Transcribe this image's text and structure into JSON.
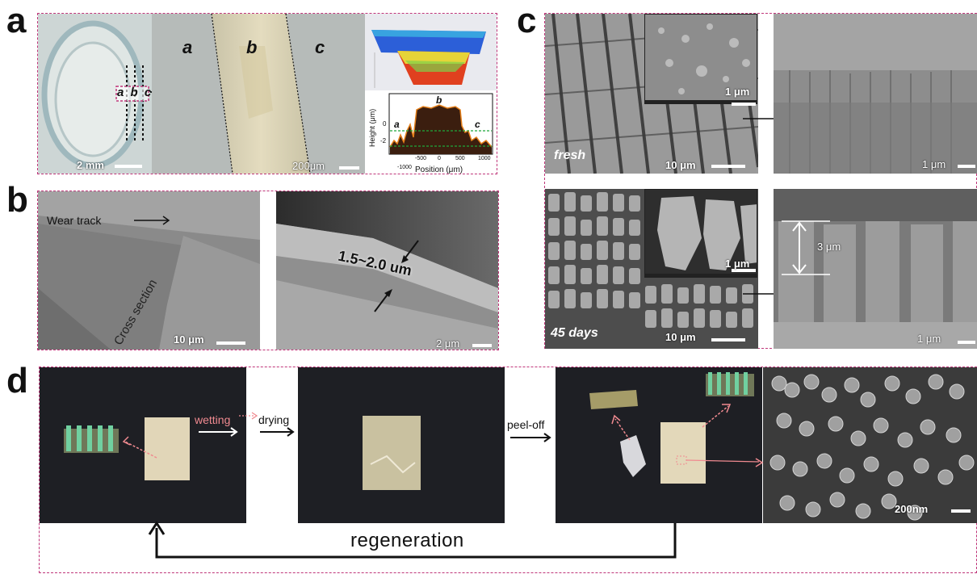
{
  "panel_labels": {
    "a": "a",
    "b": "b",
    "c": "c",
    "d": "d"
  },
  "panel_a": {
    "scale_photo": "2 mm",
    "markers": "a b c",
    "zones": [
      "a",
      "b",
      "c"
    ],
    "scale_micro": "200μm",
    "profile": {
      "ylabel": "Height (μm)",
      "xlabel": "Position (μm)",
      "xticks": [
        "-1000",
        "-500",
        "0",
        "500",
        "1000"
      ],
      "yticks": [
        "0",
        "-2"
      ],
      "region_labels": [
        "a",
        "b",
        "c"
      ]
    }
  },
  "panel_b": {
    "wear_track": "Wear track",
    "cross_section": "Cross section",
    "scale_left": "10 μm",
    "thickness": "1.5~2.0 um",
    "scale_right": "2 μm"
  },
  "panel_c": {
    "fresh": "fresh",
    "days": "45 days",
    "scale_main": "10 μm",
    "scale_inset": "1 μm",
    "scale_side": "1 μm",
    "height": "3 μm"
  },
  "panel_d": {
    "wetting": "wetting",
    "drying": "drying",
    "peel_off": "peel-off",
    "regeneration": "regeneration",
    "scale": "200nm"
  }
}
